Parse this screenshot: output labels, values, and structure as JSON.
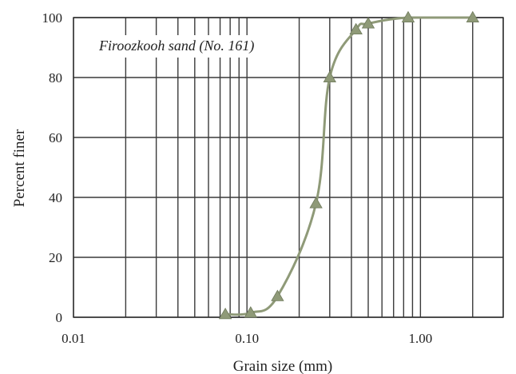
{
  "chart_data": {
    "type": "scatter",
    "title": "",
    "xlabel": "Grain size (mm)",
    "ylabel": "Percent finer",
    "x_scale": "log",
    "xlim": [
      0.01,
      3
    ],
    "ylim": [
      0,
      100
    ],
    "x_ticks": [
      {
        "value": 0.01,
        "label": "0.01"
      },
      {
        "value": 0.1,
        "label": "0.10"
      },
      {
        "value": 1,
        "label": "1.00"
      }
    ],
    "y_ticks": [
      {
        "value": 0,
        "label": "0"
      },
      {
        "value": 20,
        "label": "20"
      },
      {
        "value": 40,
        "label": "40"
      },
      {
        "value": 60,
        "label": "60"
      },
      {
        "value": 80,
        "label": "80"
      },
      {
        "value": 100,
        "label": "100"
      }
    ],
    "grid": true,
    "annotation": "Firoozkooh sand (No. 161)",
    "series": [
      {
        "marker": "triangle",
        "color": "#8f9a78",
        "x": [
          0.075,
          0.105,
          0.15,
          0.25,
          0.3,
          0.425,
          0.5,
          0.85,
          2.0
        ],
        "y": [
          1,
          1.5,
          7,
          38,
          80,
          96,
          98,
          100,
          100
        ]
      }
    ]
  }
}
